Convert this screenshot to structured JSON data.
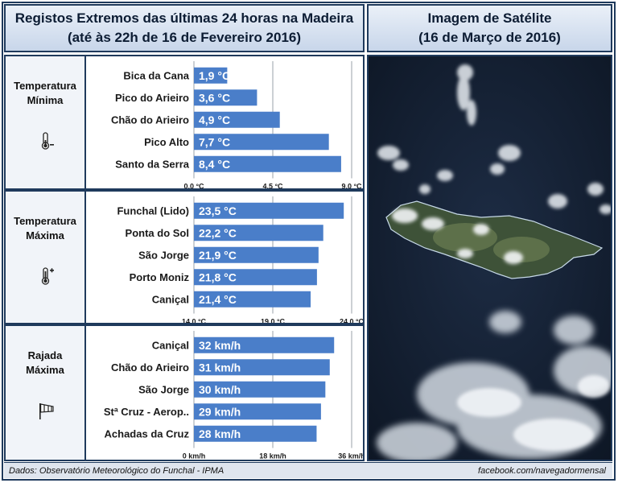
{
  "header": {
    "title_line1": "Registos Extremos das últimas 24 horas na Madeira",
    "title_line2": "(até às 22h de 16 de Fevereiro 2016)",
    "sat_line1": "Imagem de Satélite",
    "sat_line2": "(16 de Março de 2016)"
  },
  "sections": [
    {
      "label_line1": "Temperatura",
      "label_line2": "Mínima",
      "icon": "thermometer-minus-icon"
    },
    {
      "label_line1": "Temperatura",
      "label_line2": "Máxima",
      "icon": "thermometer-plus-icon"
    },
    {
      "label_line1": "Rajada",
      "label_line2": "Máxima",
      "icon": "windsock-icon"
    }
  ],
  "chart_data": [
    {
      "type": "bar",
      "orientation": "horizontal",
      "categories": [
        "Bica da Cana",
        "Pico do Arieiro",
        "Chão do Arieiro",
        "Pico Alto",
        "Santo da Serra"
      ],
      "values": [
        1.9,
        3.6,
        4.9,
        7.7,
        8.4
      ],
      "data_labels": [
        "1,9 °C",
        "3,6 °C",
        "4,9 °C",
        "7,7 °C",
        "8,4 °C"
      ],
      "xlim": [
        0,
        9
      ],
      "ticks": [
        0,
        4.5,
        9
      ],
      "tick_labels": [
        "0,0 °C",
        "4,5 °C",
        "9,0 °C"
      ],
      "bar_color": "#4a7ec9",
      "grid": true
    },
    {
      "type": "bar",
      "orientation": "horizontal",
      "categories": [
        "Funchal (Lido)",
        "Ponta do Sol",
        "São Jorge",
        "Porto Moniz",
        "Caniçal"
      ],
      "values": [
        23.5,
        22.2,
        21.9,
        21.8,
        21.4
      ],
      "data_labels": [
        "23,5 °C",
        "22,2 °C",
        "21,9 °C",
        "21,8 °C",
        "21,4 °C"
      ],
      "xlim": [
        14,
        24
      ],
      "ticks": [
        14,
        19,
        24
      ],
      "tick_labels": [
        "14,0 °C",
        "19,0 °C",
        "24,0 °C"
      ],
      "bar_color": "#4a7ec9",
      "grid": true
    },
    {
      "type": "bar",
      "orientation": "horizontal",
      "categories": [
        "Caniçal",
        "Chão do Arieiro",
        "São Jorge",
        "Stª Cruz - Aerop..",
        "Achadas da Cruz"
      ],
      "values": [
        32,
        31,
        30,
        29,
        28
      ],
      "data_labels": [
        "32 km/h",
        "31 km/h",
        "30 km/h",
        "29 km/h",
        "28 km/h"
      ],
      "xlim": [
        0,
        36
      ],
      "ticks": [
        0,
        18,
        36
      ],
      "tick_labels": [
        "0 km/h",
        "18 km/h",
        "36 km/h"
      ],
      "bar_color": "#4a7ec9",
      "grid": true
    }
  ],
  "footer": {
    "source": "Dados:  Observatório Meteorológico do Funchal - IPMA",
    "credit": "facebook.com/navegadormensal"
  },
  "satellite": {
    "icon": "satellite-image-madeira"
  }
}
